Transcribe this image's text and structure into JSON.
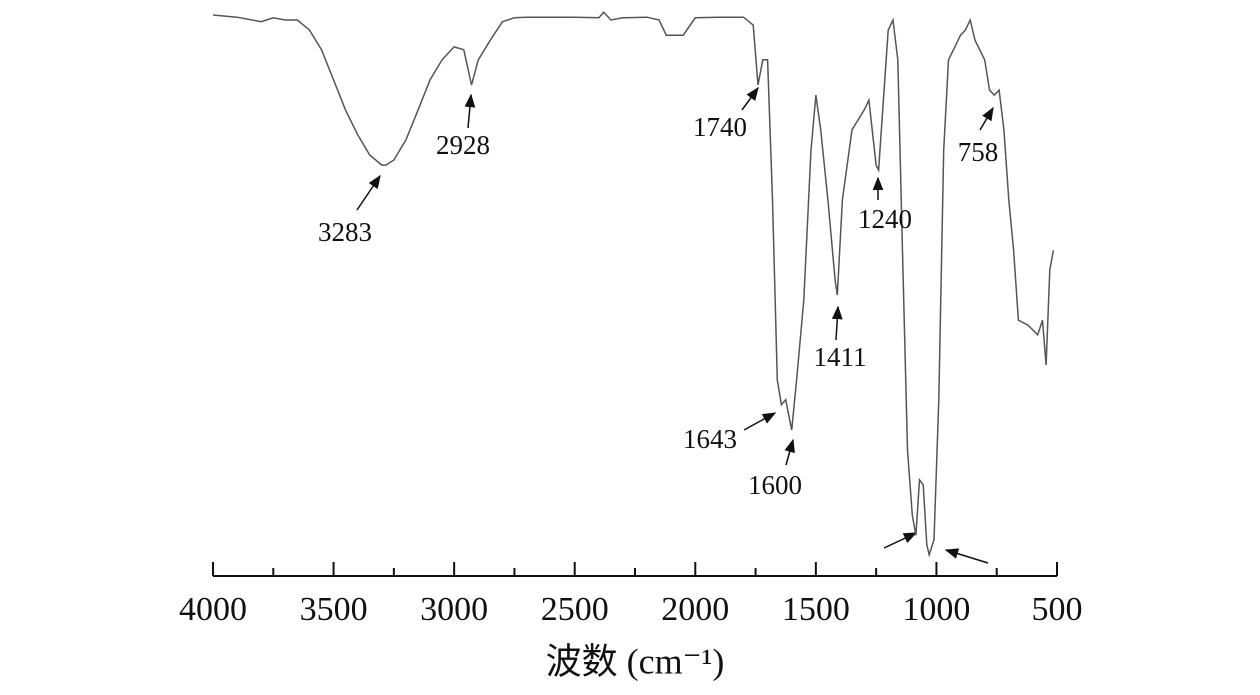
{
  "chart_data": {
    "type": "line",
    "xlabel": "波数 (cm⁻¹)",
    "xlim": [
      4000,
      500
    ],
    "xticks": [
      4000,
      3500,
      3000,
      2500,
      2000,
      1500,
      1000,
      500
    ],
    "ylim": [
      0,
      100
    ],
    "x": [
      4000,
      3900,
      3800,
      3750,
      3700,
      3650,
      3600,
      3550,
      3500,
      3450,
      3400,
      3350,
      3300,
      3283,
      3250,
      3200,
      3150,
      3100,
      3050,
      3000,
      2960,
      2928,
      2900,
      2850,
      2800,
      2750,
      2700,
      2600,
      2500,
      2400,
      2380,
      2350,
      2300,
      2200,
      2150,
      2120,
      2050,
      2000,
      1900,
      1800,
      1760,
      1740,
      1720,
      1700,
      1680,
      1660,
      1643,
      1625,
      1600,
      1580,
      1550,
      1520,
      1500,
      1480,
      1450,
      1420,
      1411,
      1390,
      1350,
      1300,
      1280,
      1250,
      1240,
      1220,
      1200,
      1180,
      1160,
      1140,
      1120,
      1100,
      1085,
      1070,
      1055,
      1040,
      1030,
      1010,
      990,
      970,
      950,
      920,
      900,
      880,
      860,
      840,
      800,
      780,
      760,
      740,
      720,
      700,
      680,
      660,
      620,
      580,
      560,
      545,
      530,
      515
    ],
    "series": [
      {
        "color": "#555555",
        "values": [
          100,
          99.6,
          98.8,
          99.5,
          99.1,
          99.1,
          97.3,
          93.8,
          88.4,
          83.0,
          78.6,
          75.0,
          73.2,
          73.2,
          74.1,
          77.7,
          83.0,
          88.4,
          92.0,
          94.3,
          93.8,
          87.5,
          92.0,
          95.5,
          98.8,
          99.5,
          99.6,
          99.6,
          99.6,
          99.5,
          100.5,
          99.1,
          99.5,
          99.6,
          99.1,
          96.4,
          96.4,
          99.5,
          99.6,
          99.6,
          98.2,
          87.5,
          92.0,
          92.0,
          67.0,
          34.8,
          30.4,
          31.3,
          25.9,
          34.8,
          49.1,
          75.9,
          85.7,
          79.5,
          67.0,
          52.7,
          50.0,
          67.0,
          79.5,
          83.0,
          84.8,
          73.2,
          72.3,
          84.8,
          97.3,
          99.1,
          92.0,
          56.3,
          22.3,
          10.7,
          7.1,
          17.0,
          16.1,
          5.4,
          3.6,
          6.3,
          31.3,
          75.9,
          92.0,
          94.6,
          96.4,
          97.3,
          99.1,
          95.5,
          92.0,
          86.6,
          85.7,
          86.6,
          79.5,
          67.0,
          58.0,
          45.5,
          44.6,
          42.9,
          45.5,
          37.5,
          54.5,
          58.0
        ]
      }
    ],
    "annotations": [
      3283,
      2928,
      1740,
      1643,
      1600,
      1411,
      1240,
      758
    ]
  }
}
